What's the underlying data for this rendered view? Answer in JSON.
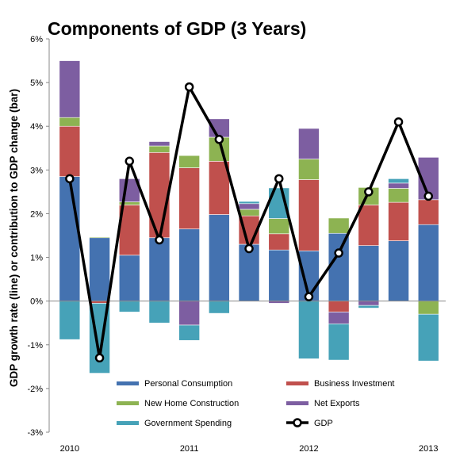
{
  "chart_data": {
    "type": "bar",
    "title": "Components of GDP (3 Years)",
    "ylabel": "GDP growth rate (line) or contribution to GDP change (bar)",
    "xlabel": "",
    "ylim": [
      -3,
      6
    ],
    "yticks": [
      -3,
      -2,
      -1,
      0,
      1,
      2,
      3,
      4,
      5,
      6
    ],
    "ytick_labels": [
      "-3%",
      "-2%",
      "-1%",
      "0%",
      "1%",
      "2%",
      "3%",
      "4%",
      "5%",
      "6%"
    ],
    "x_tick_labels": [
      {
        "label": "2010",
        "quarter": 1
      },
      {
        "label": "2011",
        "quarter": 5
      },
      {
        "label": "2012",
        "quarter": 9
      },
      {
        "label": "2013",
        "quarter": 13
      }
    ],
    "quarters": 13,
    "stacking": "positive values stack up from 0, negative values stack down from 0",
    "series": [
      {
        "name": "Personal Consumption",
        "color": "#4472b0",
        "values": [
          2.85,
          1.45,
          1.05,
          1.45,
          1.65,
          1.98,
          1.3,
          1.17,
          1.15,
          1.55,
          1.27,
          1.38,
          1.75
        ]
      },
      {
        "name": "Business Investment",
        "color": "#c0504d",
        "values": [
          1.15,
          -0.05,
          1.15,
          1.95,
          1.4,
          1.22,
          0.65,
          0.37,
          1.63,
          -0.25,
          0.93,
          0.88,
          0.57
        ]
      },
      {
        "name": "New Home Construction",
        "color": "#8db352",
        "values": [
          0.2,
          0.02,
          0.07,
          0.15,
          0.28,
          0.55,
          0.15,
          0.35,
          0.47,
          0.35,
          0.4,
          0.32,
          -0.3
        ]
      },
      {
        "name": "Net Exports",
        "color": "#7d5ea1",
        "values": [
          1.3,
          0.0,
          0.53,
          0.1,
          -0.55,
          0.42,
          0.13,
          -0.05,
          0.7,
          -0.27,
          -0.1,
          0.12,
          0.97
        ]
      },
      {
        "name": "Government Spending",
        "color": "#46a2b8",
        "values": [
          -0.88,
          -1.6,
          -0.25,
          -0.5,
          -0.35,
          -0.28,
          0.05,
          0.7,
          -1.32,
          -0.83,
          -0.06,
          0.1,
          -1.07
        ]
      }
    ],
    "line": {
      "name": "GDP",
      "values": [
        2.8,
        -1.3,
        3.2,
        1.4,
        4.9,
        3.7,
        1.2,
        2.8,
        0.1,
        1.1,
        2.5,
        4.1,
        2.4
      ]
    },
    "legend": {
      "placement": "bottom-center",
      "items": [
        {
          "name": "Personal Consumption",
          "kind": "bar",
          "color": "#4472b0"
        },
        {
          "name": "Business Investment",
          "kind": "bar",
          "color": "#c0504d"
        },
        {
          "name": "New Home Construction",
          "kind": "bar",
          "color": "#8db352"
        },
        {
          "name": "Net Exports",
          "kind": "bar",
          "color": "#7d5ea1"
        },
        {
          "name": "Government Spending",
          "kind": "bar",
          "color": "#46a2b8"
        },
        {
          "name": "GDP",
          "kind": "line",
          "color": "#000000"
        }
      ]
    },
    "grid": false
  }
}
